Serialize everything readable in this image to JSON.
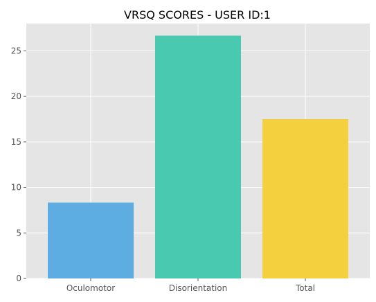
{
  "chart_data": {
    "type": "bar",
    "title": "VRSQ SCORES - USER ID:1",
    "xlabel": "",
    "ylabel": "",
    "categories": [
      "Oculomotor",
      "Disorientation",
      "Total"
    ],
    "values": [
      8.33,
      26.67,
      17.5
    ],
    "bar_colors": [
      "#5DADE2",
      "#48C9B0",
      "#F4D03F"
    ],
    "ylim": [
      0,
      28
    ],
    "yticks": [
      0,
      5,
      10,
      15,
      20,
      25
    ],
    "grid": true,
    "background_color": "#E5E5E5",
    "grid_color": "#FFFFFF",
    "legend": "none"
  }
}
